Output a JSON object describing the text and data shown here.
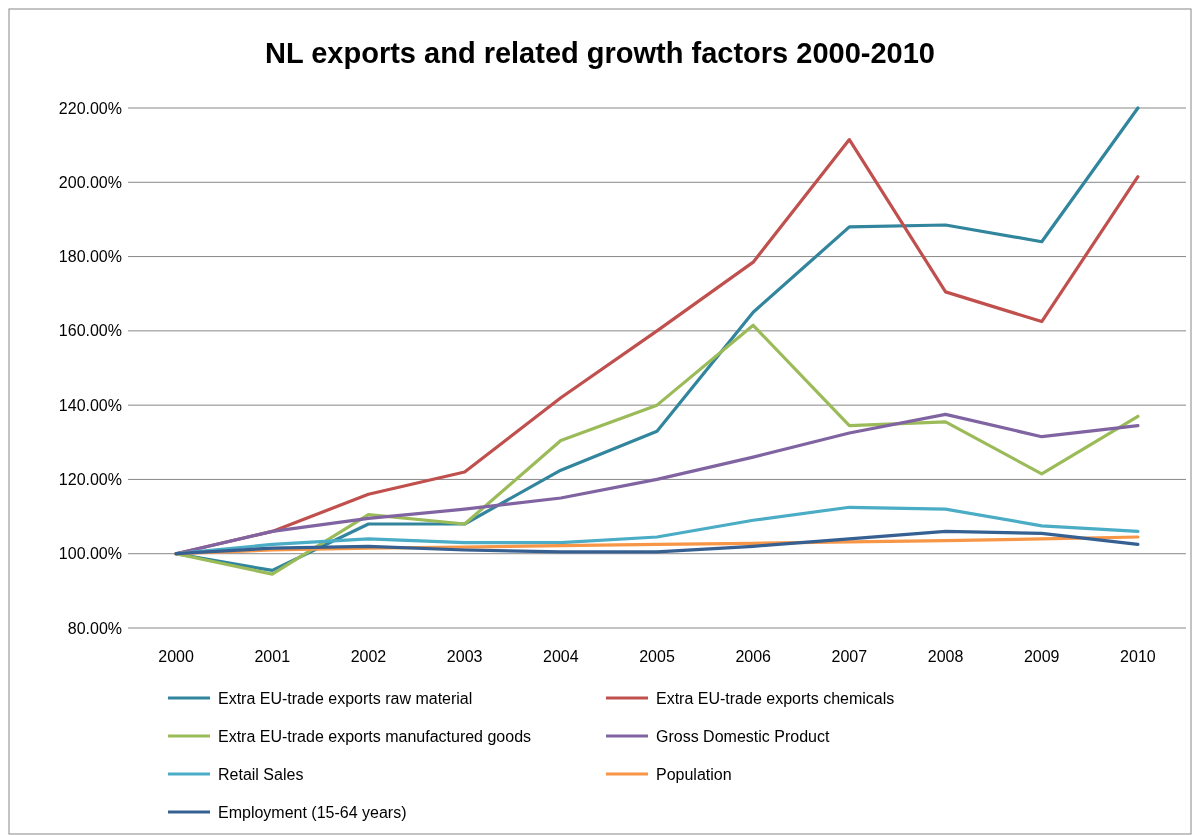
{
  "chart_data": {
    "type": "line",
    "title": "NL exports and related growth factors 2000-2010",
    "categories": [
      "2000",
      "2001",
      "2002",
      "2003",
      "2004",
      "2005",
      "2006",
      "2007",
      "2008",
      "2009",
      "2010"
    ],
    "series": [
      {
        "name": "Extra EU-trade exports raw material",
        "color": "#31859c",
        "values": [
          100,
          95.5,
          108,
          108,
          122.5,
          133,
          165,
          188,
          188.5,
          184,
          220
        ]
      },
      {
        "name": "Extra EU-trade exports chemicals",
        "color": "#c0504d",
        "values": [
          100,
          106,
          116,
          122,
          142,
          160,
          178.5,
          211.5,
          170.5,
          162.5,
          201.5
        ]
      },
      {
        "name": "Extra EU-trade exports manufactured goods",
        "color": "#9bbb59",
        "values": [
          100,
          94.5,
          110.5,
          108,
          130.5,
          140,
          161.5,
          134.5,
          135.5,
          121.5,
          137
        ]
      },
      {
        "name": "Gross Domestic Product",
        "color": "#8064a2",
        "values": [
          100,
          106,
          109.5,
          112,
          115,
          120,
          126,
          132.5,
          137.5,
          131.5,
          134.5
        ]
      },
      {
        "name": "Retail Sales",
        "color": "#4bacc6",
        "values": [
          100,
          102.5,
          104,
          103,
          103,
          104.5,
          109,
          112.5,
          112,
          107.5,
          106
        ]
      },
      {
        "name": "Population",
        "color": "#f79646",
        "values": [
          100,
          101,
          101.5,
          101.8,
          102.2,
          102.5,
          102.8,
          103.2,
          103.5,
          104,
          104.5
        ]
      },
      {
        "name": "Employment (15-64 years)",
        "color": "#376092",
        "values": [
          100,
          101.5,
          102,
          101,
          100.5,
          100.5,
          102,
          104,
          106,
          105.5,
          102.5
        ]
      }
    ],
    "ylim": [
      80,
      220
    ],
    "yticks": [
      {
        "value": 80,
        "label": "80.00%"
      },
      {
        "value": 100,
        "label": "100.00%"
      },
      {
        "value": 120,
        "label": "120.00%"
      },
      {
        "value": 140,
        "label": "140.00%"
      },
      {
        "value": 160,
        "label": "160.00%"
      },
      {
        "value": 180,
        "label": "180.00%"
      },
      {
        "value": 200,
        "label": "200.00%"
      },
      {
        "value": 220,
        "label": "220.00%"
      }
    ],
    "grid": "y",
    "legend": "bottom",
    "marker": "none",
    "line_style": "solid"
  }
}
